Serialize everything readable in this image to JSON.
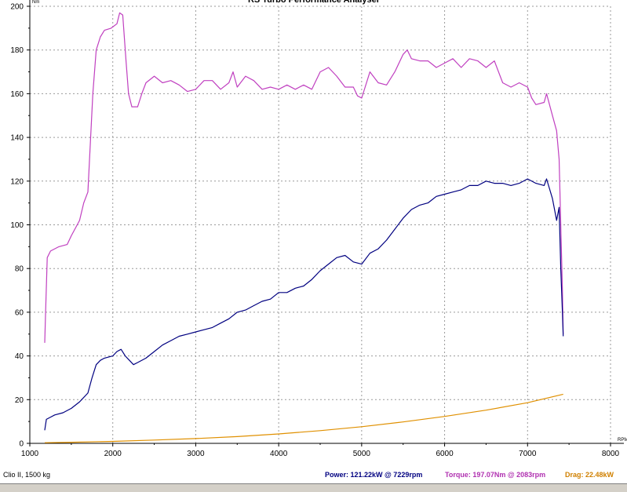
{
  "title": "RS Turbo Performance Analyser",
  "chart_data": {
    "type": "line",
    "xlabel": "RPM",
    "ylabel": "Nm",
    "xlim": [
      1000,
      8000
    ],
    "ylim": [
      0,
      200
    ],
    "x_ticks": [
      1000,
      2000,
      3000,
      4000,
      5000,
      6000,
      7000,
      8000
    ],
    "y_ticks": [
      0,
      20,
      40,
      60,
      80,
      100,
      120,
      140,
      160,
      180,
      200
    ],
    "grid": true,
    "series": [
      {
        "name": "Torque",
        "color": "#c040c0",
        "points": [
          [
            1180,
            46
          ],
          [
            1190,
            60
          ],
          [
            1210,
            85
          ],
          [
            1250,
            88
          ],
          [
            1350,
            90
          ],
          [
            1450,
            91
          ],
          [
            1500,
            95
          ],
          [
            1600,
            102
          ],
          [
            1650,
            110
          ],
          [
            1700,
            115
          ],
          [
            1720,
            130
          ],
          [
            1760,
            160
          ],
          [
            1800,
            180
          ],
          [
            1850,
            186
          ],
          [
            1900,
            189
          ],
          [
            1980,
            190
          ],
          [
            2050,
            192
          ],
          [
            2083,
            197
          ],
          [
            2120,
            196
          ],
          [
            2160,
            175
          ],
          [
            2190,
            160
          ],
          [
            2230,
            154
          ],
          [
            2300,
            154
          ],
          [
            2350,
            160
          ],
          [
            2400,
            165
          ],
          [
            2500,
            168
          ],
          [
            2600,
            165
          ],
          [
            2700,
            166
          ],
          [
            2800,
            164
          ],
          [
            2900,
            161
          ],
          [
            3000,
            162
          ],
          [
            3100,
            166
          ],
          [
            3200,
            166
          ],
          [
            3300,
            162
          ],
          [
            3400,
            165
          ],
          [
            3450,
            170
          ],
          [
            3500,
            163
          ],
          [
            3600,
            168
          ],
          [
            3700,
            166
          ],
          [
            3800,
            162
          ],
          [
            3900,
            163
          ],
          [
            4000,
            162
          ],
          [
            4100,
            164
          ],
          [
            4200,
            162
          ],
          [
            4300,
            164
          ],
          [
            4400,
            162
          ],
          [
            4500,
            170
          ],
          [
            4600,
            172
          ],
          [
            4700,
            168
          ],
          [
            4800,
            163
          ],
          [
            4900,
            163
          ],
          [
            4950,
            159
          ],
          [
            5000,
            158
          ],
          [
            5100,
            170
          ],
          [
            5200,
            165
          ],
          [
            5300,
            164
          ],
          [
            5400,
            170
          ],
          [
            5500,
            178
          ],
          [
            5550,
            180
          ],
          [
            5600,
            176
          ],
          [
            5700,
            175
          ],
          [
            5800,
            175
          ],
          [
            5900,
            172
          ],
          [
            6000,
            174
          ],
          [
            6100,
            176
          ],
          [
            6200,
            172
          ],
          [
            6300,
            176
          ],
          [
            6400,
            175
          ],
          [
            6500,
            172
          ],
          [
            6600,
            175
          ],
          [
            6700,
            165
          ],
          [
            6800,
            163
          ],
          [
            6900,
            165
          ],
          [
            7000,
            163
          ],
          [
            7050,
            158
          ],
          [
            7100,
            155
          ],
          [
            7200,
            156
          ],
          [
            7229,
            160
          ],
          [
            7300,
            150
          ],
          [
            7350,
            143
          ],
          [
            7380,
            130
          ],
          [
            7400,
            100
          ],
          [
            7420,
            70
          ],
          [
            7430,
            50
          ]
        ]
      },
      {
        "name": "Power",
        "color": "#000080",
        "points": [
          [
            1180,
            6
          ],
          [
            1200,
            11
          ],
          [
            1250,
            12
          ],
          [
            1300,
            13
          ],
          [
            1400,
            14
          ],
          [
            1500,
            16
          ],
          [
            1600,
            19
          ],
          [
            1700,
            23
          ],
          [
            1750,
            30
          ],
          [
            1800,
            36
          ],
          [
            1850,
            38
          ],
          [
            1900,
            39
          ],
          [
            2000,
            40
          ],
          [
            2050,
            42
          ],
          [
            2100,
            43
          ],
          [
            2150,
            40
          ],
          [
            2200,
            38
          ],
          [
            2250,
            36
          ],
          [
            2300,
            37
          ],
          [
            2400,
            39
          ],
          [
            2500,
            42
          ],
          [
            2600,
            45
          ],
          [
            2700,
            47
          ],
          [
            2800,
            49
          ],
          [
            2900,
            50
          ],
          [
            3000,
            51
          ],
          [
            3100,
            52
          ],
          [
            3200,
            53
          ],
          [
            3300,
            55
          ],
          [
            3400,
            57
          ],
          [
            3500,
            60
          ],
          [
            3600,
            61
          ],
          [
            3700,
            63
          ],
          [
            3800,
            65
          ],
          [
            3900,
            66
          ],
          [
            4000,
            69
          ],
          [
            4100,
            69
          ],
          [
            4200,
            71
          ],
          [
            4300,
            72
          ],
          [
            4400,
            75
          ],
          [
            4500,
            79
          ],
          [
            4600,
            82
          ],
          [
            4700,
            85
          ],
          [
            4800,
            86
          ],
          [
            4900,
            83
          ],
          [
            5000,
            82
          ],
          [
            5100,
            87
          ],
          [
            5200,
            89
          ],
          [
            5300,
            93
          ],
          [
            5400,
            98
          ],
          [
            5500,
            103
          ],
          [
            5600,
            107
          ],
          [
            5700,
            109
          ],
          [
            5800,
            110
          ],
          [
            5900,
            113
          ],
          [
            6000,
            114
          ],
          [
            6100,
            115
          ],
          [
            6200,
            116
          ],
          [
            6300,
            118
          ],
          [
            6400,
            118
          ],
          [
            6500,
            120
          ],
          [
            6600,
            119
          ],
          [
            6700,
            119
          ],
          [
            6800,
            118
          ],
          [
            6900,
            119
          ],
          [
            7000,
            121
          ],
          [
            7100,
            119
          ],
          [
            7200,
            118
          ],
          [
            7229,
            121
          ],
          [
            7300,
            112
          ],
          [
            7350,
            102
          ],
          [
            7380,
            108
          ],
          [
            7400,
            80
          ],
          [
            7420,
            60
          ],
          [
            7430,
            49
          ]
        ]
      },
      {
        "name": "Drag",
        "color": "#e09000",
        "points": [
          [
            1180,
            0.3
          ],
          [
            1500,
            0.5
          ],
          [
            2000,
            0.9
          ],
          [
            2500,
            1.5
          ],
          [
            3000,
            2.2
          ],
          [
            3500,
            3.1
          ],
          [
            4000,
            4.3
          ],
          [
            4500,
            5.8
          ],
          [
            5000,
            7.6
          ],
          [
            5500,
            9.8
          ],
          [
            6000,
            12.3
          ],
          [
            6500,
            15.2
          ],
          [
            7000,
            18.6
          ],
          [
            7430,
            22.48
          ]
        ]
      }
    ],
    "footer": {
      "vehicle": "Clio II, 1500 kg",
      "power": "Power: 121.22kW @ 7229rpm",
      "torque": "Torque: 197.07Nm @ 2083rpm",
      "drag": "Drag: 22.48kW"
    }
  }
}
